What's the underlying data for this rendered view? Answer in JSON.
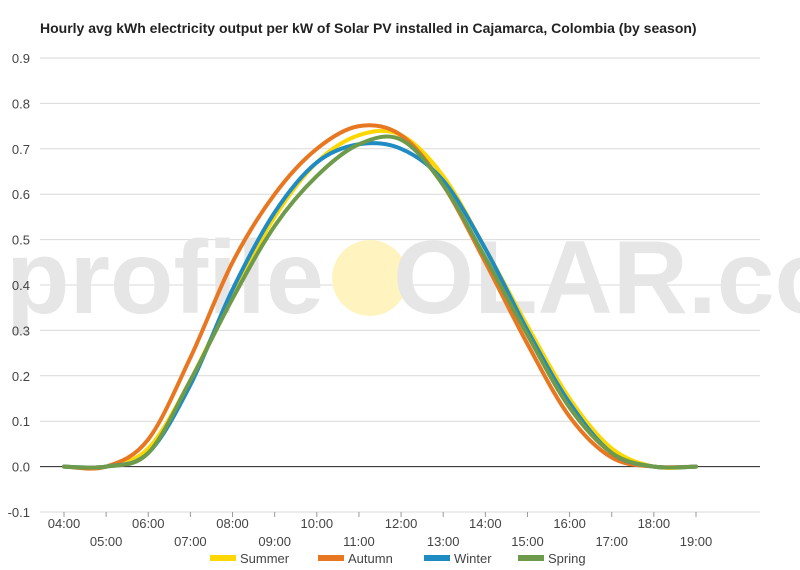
{
  "chart_data": {
    "type": "line",
    "title": "Hourly avg kWh electricity output per kW of Solar PV installed in Cajamarca, Colombia (by season)",
    "xlabel": "",
    "ylabel": "",
    "x": [
      "04:00",
      "05:00",
      "06:00",
      "07:00",
      "08:00",
      "09:00",
      "10:00",
      "11:00",
      "12:00",
      "13:00",
      "14:00",
      "15:00",
      "16:00",
      "17:00",
      "18:00",
      "19:00"
    ],
    "y_ticks": [
      "-0.1",
      "0.0",
      "0.1",
      "0.2",
      "0.3",
      "0.4",
      "0.5",
      "0.6",
      "0.7",
      "0.8",
      "0.9"
    ],
    "ylim": [
      -0.1,
      0.9
    ],
    "grid": true,
    "legend": "bottom",
    "series": [
      {
        "name": "Summer",
        "color": "#FFD700",
        "values": [
          0.0,
          0.0,
          0.04,
          0.19,
          0.38,
          0.55,
          0.67,
          0.73,
          0.73,
          0.64,
          0.48,
          0.31,
          0.15,
          0.04,
          0.0,
          0.0
        ]
      },
      {
        "name": "Autumn",
        "color": "#E87722",
        "values": [
          0.0,
          0.0,
          0.06,
          0.24,
          0.45,
          0.6,
          0.7,
          0.75,
          0.73,
          0.62,
          0.45,
          0.27,
          0.11,
          0.02,
          0.0,
          0.0
        ]
      },
      {
        "name": "Winter",
        "color": "#1E8BC3",
        "values": [
          0.0,
          0.0,
          0.03,
          0.18,
          0.39,
          0.56,
          0.67,
          0.71,
          0.7,
          0.63,
          0.48,
          0.3,
          0.14,
          0.03,
          0.0,
          0.0
        ]
      },
      {
        "name": "Spring",
        "color": "#6E9B4B",
        "values": [
          0.0,
          0.0,
          0.03,
          0.19,
          0.37,
          0.53,
          0.64,
          0.71,
          0.72,
          0.62,
          0.46,
          0.29,
          0.13,
          0.03,
          0.0,
          0.0
        ]
      }
    ],
    "watermark": {
      "left": "profile",
      "sun": "S",
      "right": "OLAR.com",
      "sun_color": "#FFF3BF"
    }
  }
}
